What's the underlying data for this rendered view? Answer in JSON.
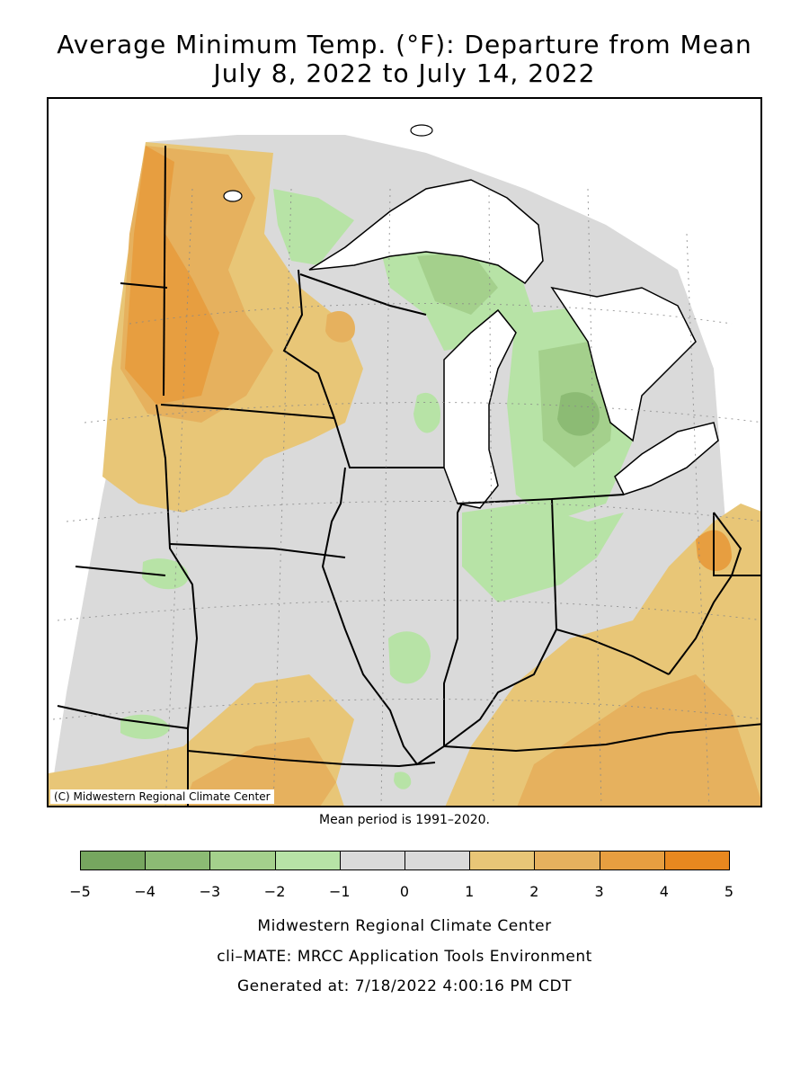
{
  "title_line1": "Average Minimum Temp. (°F): Departure from Mean",
  "title_line2": "July 8, 2022 to July 14, 2022",
  "map_copyright": "(C) Midwestern Regional Climate Center",
  "mean_period_note": "Mean period is 1991–2020.",
  "legend": {
    "ticks": [
      "−5",
      "−4",
      "−3",
      "−2",
      "−1",
      "0",
      "1",
      "2",
      "3",
      "4",
      "5"
    ],
    "colors": [
      "#76a65f",
      "#8cbb74",
      "#a4d08c",
      "#b7e3a6",
      "#dadada",
      "#dadada",
      "#e8c677",
      "#e6b15e",
      "#e79e40",
      "#e8881f"
    ]
  },
  "credits": {
    "line1": "Midwestern Regional Climate Center",
    "line2": "cli–MATE: MRCC Application Tools Environment",
    "line3": "Generated at: 7/18/2022 4:00:16 PM CDT"
  },
  "colors": {
    "gray": "#dadada",
    "lake": "#ffffff",
    "green_light": "#b7e3a6",
    "green_mid": "#a4d08c",
    "green_dark": "#8cbb74",
    "orange_light": "#e8c677",
    "orange_mid": "#e6b15e",
    "orange_dark": "#e79e40"
  }
}
